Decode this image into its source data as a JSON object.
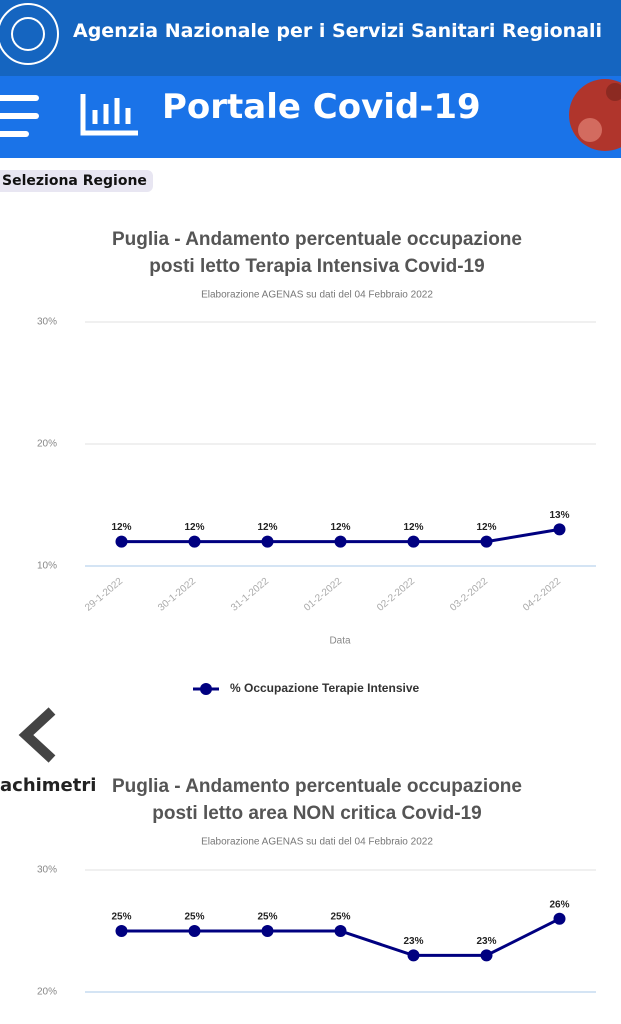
{
  "header": {
    "agency": "Agenzia Nazionale per i Servizi Sanitari Regionali",
    "portal": "Portale Covid-19"
  },
  "region_button": "Seleziona Regione",
  "side_label": "achimetri",
  "chart_data": [
    {
      "type": "line",
      "title": [
        "Puglia - Andamento percentuale occupazione",
        "posti letto Terapia Intensiva Covid-19"
      ],
      "subtitle": "Elaborazione AGENAS su dati del 04 Febbraio 2022",
      "x_label": "Data",
      "categories": [
        "29-1-2022",
        "30-1-2022",
        "31-1-2022",
        "01-2-2022",
        "02-2-2022",
        "03-2-2022",
        "04-2-2022"
      ],
      "series": [
        {
          "name": "% Occupazione Terapie Intensive",
          "color": "#000080",
          "values": [
            12,
            12,
            12,
            12,
            12,
            12,
            13
          ],
          "value_labels": [
            "12%",
            "12%",
            "12%",
            "12%",
            "12%",
            "12%",
            "13%"
          ]
        }
      ],
      "ylim": [
        10,
        30
      ],
      "yticks": [
        {
          "value": 10,
          "label": "10%"
        },
        {
          "value": 20,
          "label": "20%"
        },
        {
          "value": 30,
          "label": "30%"
        }
      ],
      "grid": true,
      "legend": "bottom"
    },
    {
      "type": "line",
      "title": [
        "Puglia - Andamento percentuale occupazione",
        "posti letto area NON critica Covid-19"
      ],
      "subtitle": "Elaborazione AGENAS su dati del 04 Febbraio 2022",
      "series": [
        {
          "color": "#000080",
          "values": [
            25,
            25,
            25,
            25,
            23,
            23,
            26
          ],
          "value_labels": [
            "25%",
            "25%",
            "25%",
            "25%",
            "23%",
            "23%",
            "26%"
          ]
        }
      ],
      "ylim": [
        20,
        30
      ],
      "yticks": [
        {
          "value": 20,
          "label": "20%"
        },
        {
          "value": 30,
          "label": "30%"
        }
      ],
      "grid": true
    }
  ]
}
